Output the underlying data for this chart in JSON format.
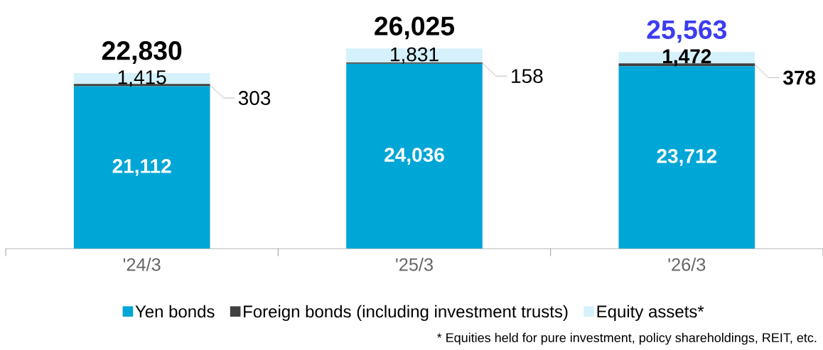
{
  "chart_data": {
    "type": "bar",
    "stacked": true,
    "categories": [
      "'24/3",
      "'25/3",
      "'26/3"
    ],
    "series": [
      {
        "name": "Yen bonds",
        "color": "#00a6d6",
        "values": [
          21112,
          24036,
          23712
        ],
        "value_labels": [
          "21,112",
          "24,036",
          "23,712"
        ]
      },
      {
        "name": "Foreign bonds (including investment trusts)",
        "color": "#404040",
        "values": [
          303,
          158,
          378
        ],
        "value_labels": [
          "303",
          "158",
          "378"
        ]
      },
      {
        "name": "Equity assets*",
        "color": "#d5f1fb",
        "values": [
          1415,
          1831,
          1472
        ],
        "value_labels": [
          "1,415",
          "1,831",
          "1,472"
        ]
      }
    ],
    "totals": [
      "22,830",
      "26,025",
      "25,563"
    ],
    "legend": "bottom",
    "annotations": [
      "* Equities held for pure investment, policy shareholdings, REIT, etc."
    ]
  }
}
